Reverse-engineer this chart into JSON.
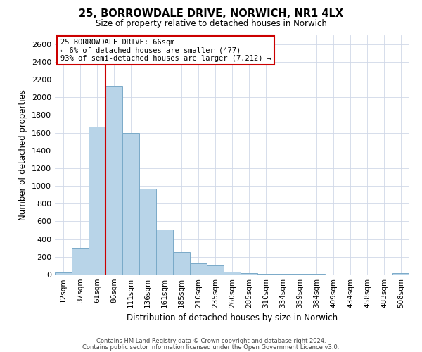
{
  "title": "25, BORROWDALE DRIVE, NORWICH, NR1 4LX",
  "subtitle": "Size of property relative to detached houses in Norwich",
  "xlabel": "Distribution of detached houses by size in Norwich",
  "ylabel": "Number of detached properties",
  "bar_color": "#b8d4e8",
  "bar_edge_color": "#7aaac8",
  "bin_labels": [
    "12sqm",
    "37sqm",
    "61sqm",
    "86sqm",
    "111sqm",
    "136sqm",
    "161sqm",
    "185sqm",
    "210sqm",
    "235sqm",
    "260sqm",
    "285sqm",
    "310sqm",
    "334sqm",
    "359sqm",
    "384sqm",
    "409sqm",
    "434sqm",
    "458sqm",
    "483sqm",
    "508sqm"
  ],
  "bar_heights": [
    20,
    300,
    1670,
    2130,
    1600,
    970,
    505,
    255,
    125,
    100,
    35,
    15,
    10,
    5,
    5,
    5,
    3,
    3,
    3,
    3,
    15
  ],
  "ylim": [
    0,
    2700
  ],
  "yticks": [
    0,
    200,
    400,
    600,
    800,
    1000,
    1200,
    1400,
    1600,
    1800,
    2000,
    2200,
    2400,
    2600
  ],
  "vline_x_idx": 2,
  "vline_color": "#cc0000",
  "annotation_title": "25 BORROWDALE DRIVE: 66sqm",
  "annotation_line1": "← 6% of detached houses are smaller (477)",
  "annotation_line2": "93% of semi-detached houses are larger (7,212) →",
  "annotation_box_color": "#ffffff",
  "annotation_box_edge_color": "#cc0000",
  "footer1": "Contains HM Land Registry data © Crown copyright and database right 2024.",
  "footer2": "Contains public sector information licensed under the Open Government Licence v3.0.",
  "background_color": "#ffffff",
  "grid_color": "#d0d8e8"
}
